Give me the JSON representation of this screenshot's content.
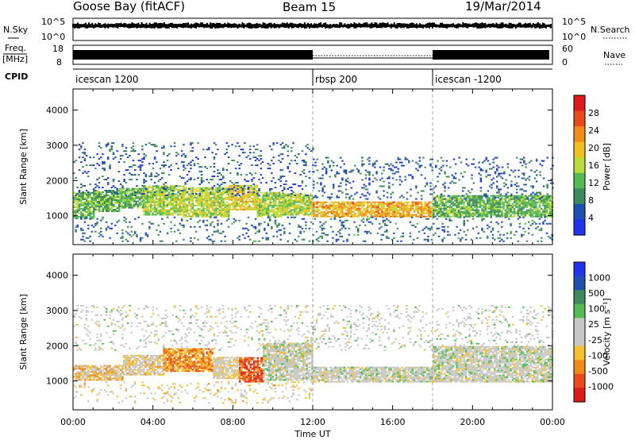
{
  "header": {
    "station": "Goose Bay (fitACF)",
    "beam": "Beam 15",
    "date": "19/Mar/2014"
  },
  "top_panels": {
    "nsky_label": "N.Sky",
    "nsky_ticks": [
      "10^5",
      "10^0"
    ],
    "nsearch_label": "N.Search",
    "freq_label": "Freq.",
    "freq_unit": "[MHz]",
    "freq_ticks": [
      "18",
      "8"
    ],
    "nave_label": "Nave",
    "nave_ticks": [
      "60",
      "0"
    ],
    "cpid_label": "CPID",
    "cpid_segments": [
      {
        "name": "icescan 1200",
        "start": 0,
        "end": 12
      },
      {
        "name": "rbsp 200",
        "start": 12,
        "end": 18
      },
      {
        "name": "icescan -1200",
        "start": 18,
        "end": 24
      }
    ]
  },
  "x_axis": {
    "label": "Time UT",
    "ticks": [
      "00:00",
      "04:00",
      "08:00",
      "12:00",
      "16:00",
      "20:00",
      "00:00"
    ]
  },
  "colors": {
    "power": [
      "#2233ee",
      "#1f4fb0",
      "#3e8a5a",
      "#55bb55",
      "#b9dc3a",
      "#f0c020",
      "#f08a1a",
      "#e84a1a",
      "#dd1a1a"
    ],
    "velocity": [
      "#2233ee",
      "#1f4fb0",
      "#3e8a5a",
      "#55bb55",
      "#c8c8c8",
      "#c8c8c8",
      "#f5c030",
      "#f08a1a",
      "#e84a1a",
      "#dd1a1a"
    ]
  },
  "chart_data": [
    {
      "type": "heatmap",
      "name": "power",
      "ylabel": "Slant Range [km]",
      "xlabel": "Time UT",
      "xlim": [
        0,
        24
      ],
      "ylim": [
        180,
        4600
      ],
      "yticks": [
        1000,
        2000,
        3000,
        4000
      ],
      "colorbar": {
        "label": "Power [dB]",
        "ticks": [
          "4",
          "8",
          "12",
          "16",
          "20",
          "24",
          "28"
        ],
        "range": [
          0,
          32
        ]
      },
      "bands": [
        {
          "t0": 0.0,
          "t1": 1.0,
          "r0": 950,
          "r1": 1700,
          "value": 13
        },
        {
          "t0": 1.0,
          "t1": 2.3,
          "r0": 1150,
          "r1": 1750,
          "value": 12
        },
        {
          "t0": 2.3,
          "t1": 3.5,
          "r0": 1250,
          "r1": 1800,
          "value": 12
        },
        {
          "t0": 3.5,
          "t1": 5.5,
          "r0": 1050,
          "r1": 1900,
          "value": 15
        },
        {
          "t0": 5.5,
          "t1": 7.8,
          "r0": 1000,
          "r1": 1850,
          "value": 16
        },
        {
          "t0": 7.8,
          "t1": 9.2,
          "r0": 1200,
          "r1": 1900,
          "value": 18
        },
        {
          "t0": 9.2,
          "t1": 10.5,
          "r0": 1000,
          "r1": 1700,
          "value": 15
        },
        {
          "t0": 10.5,
          "t1": 12.0,
          "r0": 1050,
          "r1": 1650,
          "value": 16
        },
        {
          "t0": 12.0,
          "t1": 18.0,
          "r0": 1000,
          "r1": 1450,
          "value": 21
        },
        {
          "t0": 18.0,
          "t1": 24.0,
          "r0": 1000,
          "r1": 1600,
          "value": 12
        }
      ],
      "sparse": [
        {
          "t0": 0.0,
          "t1": 12.0,
          "r0": 1600,
          "r1": 3100,
          "value": 6
        },
        {
          "t0": 12.0,
          "t1": 24.0,
          "r0": 1500,
          "r1": 2700,
          "value": 6
        },
        {
          "t0": 0.0,
          "t1": 24.0,
          "r0": 300,
          "r1": 1000,
          "value": 7
        }
      ]
    },
    {
      "type": "heatmap",
      "name": "velocity",
      "ylabel": "Slant Range [km]",
      "xlabel": "Time UT",
      "xlim": [
        0,
        24
      ],
      "ylim": [
        180,
        4600
      ],
      "yticks": [
        1000,
        2000,
        3000,
        4000
      ],
      "colorbar": {
        "label": "Velocity [m s⁻¹]",
        "ticks": [
          "1000",
          "500",
          "100",
          "25",
          "-25",
          "-100",
          "-500",
          "-1000"
        ],
        "range": [
          -1200,
          1200
        ]
      },
      "bands": [
        {
          "t0": 0.0,
          "t1": 2.5,
          "r0": 1050,
          "r1": 1500,
          "value": -300
        },
        {
          "t0": 2.5,
          "t1": 4.5,
          "r0": 1200,
          "r1": 1750,
          "value": -200
        },
        {
          "t0": 4.5,
          "t1": 7.0,
          "r0": 1300,
          "r1": 1950,
          "value": -600
        },
        {
          "t0": 7.0,
          "t1": 8.3,
          "r0": 1100,
          "r1": 1700,
          "value": -150
        },
        {
          "t0": 8.3,
          "t1": 9.5,
          "r0": 1000,
          "r1": 1700,
          "value": -800
        },
        {
          "t0": 9.5,
          "t1": 12.0,
          "r0": 1050,
          "r1": 2100,
          "value": 0
        },
        {
          "t0": 12.0,
          "t1": 18.0,
          "r0": 1000,
          "r1": 1450,
          "value": 0
        },
        {
          "t0": 18.0,
          "t1": 24.0,
          "r0": 1000,
          "r1": 2000,
          "value": 0
        }
      ],
      "sparse": [
        {
          "t0": 0.0,
          "t1": 24.0,
          "r0": 1900,
          "r1": 3200,
          "value": 0
        },
        {
          "t0": 0.0,
          "t1": 12.0,
          "r0": 400,
          "r1": 1000,
          "value": -200
        }
      ]
    }
  ]
}
